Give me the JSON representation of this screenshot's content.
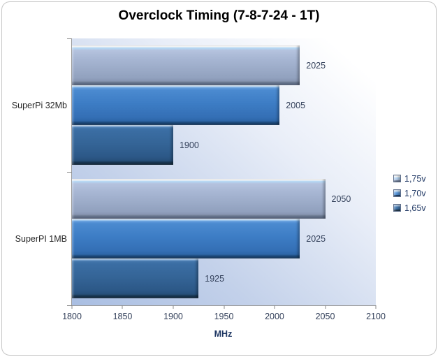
{
  "title": "Overclock Timing (7-8-7-24 - 1T)",
  "chart_data": {
    "type": "bar",
    "orientation": "horizontal",
    "title": "Overclock Timing (7-8-7-24 - 1T)",
    "categories": [
      "SuperPi 32Mb",
      "SuperPI 1MB"
    ],
    "series": [
      {
        "name": "1,75v",
        "values": [
          2025,
          2050
        ],
        "color": "#a9b8d5"
      },
      {
        "name": "1,70v",
        "values": [
          2005,
          2025
        ],
        "color": "#3d7dc5"
      },
      {
        "name": "1,65v",
        "values": [
          1900,
          1925
        ],
        "color": "#346496"
      }
    ],
    "xlabel": "MHz",
    "xlim": [
      1800,
      2100
    ],
    "xticks": [
      1800,
      1850,
      1900,
      1950,
      2000,
      2050,
      2100
    ],
    "legend_position": "right",
    "value_labels": true,
    "grid": false
  },
  "colors": {
    "plot_bg_from": "#a9bee2",
    "plot_bg_to": "#ffffff",
    "axis_line": "#9a9a9a",
    "tick_text": "#33405a",
    "legend_text": "#203864",
    "frame_border": "#c6c6c6"
  }
}
